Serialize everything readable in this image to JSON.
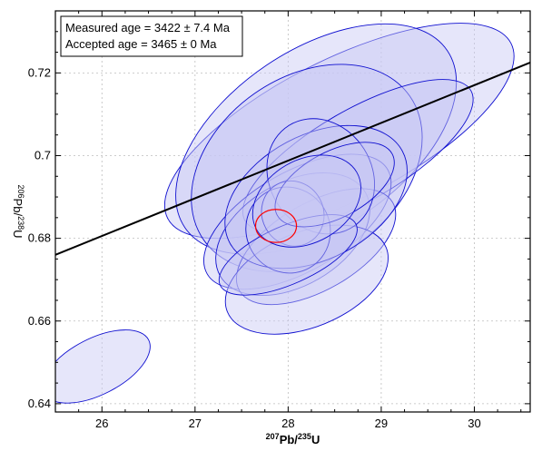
{
  "chart_data": {
    "type": "concordia",
    "title": "",
    "xlabel": {
      "pre": "207",
      "main": "Pb/",
      "sup2": "235",
      "end": "U"
    },
    "ylabel": {
      "pre": "206",
      "main": "Pb/",
      "sup2": "238",
      "end": "U"
    },
    "xlim": [
      25.5,
      30.6
    ],
    "ylim": [
      0.638,
      0.735
    ],
    "x_ticks": [
      26,
      27,
      28,
      29,
      30
    ],
    "y_ticks": [
      0.64,
      0.66,
      0.68,
      0.7,
      0.72
    ],
    "y_tick_labels": [
      "0.64",
      "0.66",
      "0.68",
      "0.7",
      "0.72"
    ],
    "grid": true,
    "legend": {
      "placement": "top-left",
      "lines": [
        "Measured age = 3422 ± 7.4 Ma",
        "Accepted age = 3465 ± 0 Ma"
      ]
    },
    "concordia_line": {
      "x": [
        25.5,
        30.6
      ],
      "y": [
        0.676,
        0.7225
      ],
      "color": "#000000"
    },
    "colors": {
      "ellipse_fill": "#c8c8f5",
      "ellipse_stroke": "#1010d0",
      "highlight": "#ff0000"
    },
    "ellipses": [
      {
        "cx": 25.94,
        "cy": 0.649,
        "rx": 0.63,
        "ry": 0.0068,
        "angle": -27
      },
      {
        "cx": 28.55,
        "cy": 0.706,
        "rx": 2.07,
        "ry": 0.017,
        "angle": -27
      },
      {
        "cx": 28.3,
        "cy": 0.704,
        "rx": 1.7,
        "ry": 0.0215,
        "angle": -34
      },
      {
        "cx": 28.2,
        "cy": 0.697,
        "rx": 1.35,
        "ry": 0.022,
        "angle": -35
      },
      {
        "cx": 28.75,
        "cy": 0.7,
        "rx": 1.4,
        "ry": 0.011,
        "angle": -30
      },
      {
        "cx": 28.1,
        "cy": 0.684,
        "rx": 1.12,
        "ry": 0.012,
        "angle": -30
      },
      {
        "cx": 28.05,
        "cy": 0.681,
        "rx": 0.9,
        "ry": 0.0125,
        "angle": -30
      },
      {
        "cx": 28.3,
        "cy": 0.678,
        "rx": 0.95,
        "ry": 0.0105,
        "angle": -30
      },
      {
        "cx": 28.2,
        "cy": 0.67,
        "rx": 0.92,
        "ry": 0.0115,
        "angle": -22
      },
      {
        "cx": 28.3,
        "cy": 0.69,
        "rx": 1.05,
        "ry": 0.015,
        "angle": -28
      },
      {
        "cx": 28.35,
        "cy": 0.695,
        "rx": 0.55,
        "ry": 0.0145,
        "angle": -32
      },
      {
        "cx": 28.0,
        "cy": 0.682,
        "rx": 0.45,
        "ry": 0.0105,
        "angle": -30
      },
      {
        "cx": 28.05,
        "cy": 0.686,
        "rx": 0.33,
        "ry": 0.008,
        "angle": -28
      },
      {
        "cx": 28.0,
        "cy": 0.676,
        "rx": 0.8,
        "ry": 0.007,
        "angle": -24
      },
      {
        "cx": 28.5,
        "cy": 0.693,
        "rx": 0.7,
        "ry": 0.008,
        "angle": -28
      },
      {
        "cx": 28.2,
        "cy": 0.689,
        "rx": 0.62,
        "ry": 0.01,
        "angle": -30
      }
    ],
    "highlight_ellipse": {
      "cx": 27.87,
      "cy": 0.683,
      "rx": 0.22,
      "ry": 0.004,
      "angle": 0
    }
  }
}
